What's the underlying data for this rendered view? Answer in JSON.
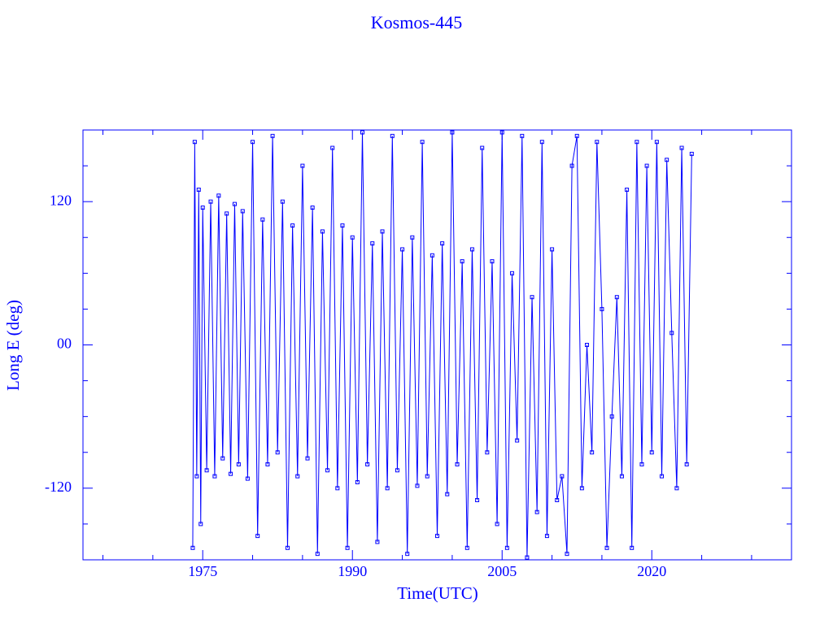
{
  "chart_data": {
    "type": "line",
    "title": "Kosmos-445",
    "x_label": "Time(UTC)",
    "y_label": "Long E (deg)",
    "color": "#0000ff",
    "markers": true,
    "xlim": [
      1963,
      2034
    ],
    "xticks": [
      1975,
      1990,
      2005,
      2020
    ],
    "xminorticks": [
      1965,
      1970,
      1980,
      1985,
      1995,
      2000,
      2010,
      2015,
      2025,
      2030
    ],
    "ylim": [
      -180,
      180
    ],
    "yticks": [
      -120,
      {
        "value": 0,
        "label": "00"
      },
      120
    ],
    "yminorticks": [
      -150,
      -90,
      -60,
      -30,
      30,
      60,
      90,
      150
    ],
    "x": [
      1974.0,
      1974.2,
      1974.4,
      1974.6,
      1974.8,
      1975.0,
      1975.4,
      1975.8,
      1976.2,
      1976.6,
      1977.0,
      1977.4,
      1977.8,
      1978.2,
      1978.6,
      1979.0,
      1979.5,
      1980.0,
      1980.5,
      1981.0,
      1981.5,
      1982.0,
      1982.5,
      1983.0,
      1983.5,
      1984.0,
      1984.5,
      1985.0,
      1985.5,
      1986.0,
      1986.5,
      1987.0,
      1987.5,
      1988.0,
      1988.5,
      1989.0,
      1989.5,
      1990.0,
      1990.5,
      1991.0,
      1991.5,
      1992.0,
      1992.5,
      1993.0,
      1993.5,
      1994.0,
      1994.5,
      1995.0,
      1995.5,
      1996.0,
      1996.5,
      1997.0,
      1997.5,
      1998.0,
      1998.5,
      1999.0,
      1999.5,
      2000.0,
      2000.5,
      2001.0,
      2001.5,
      2002.0,
      2002.5,
      2003.0,
      2003.5,
      2004.0,
      2004.5,
      2005.0,
      2005.5,
      2006.0,
      2006.5,
      2007.0,
      2007.5,
      2008.0,
      2008.5,
      2009.0,
      2009.5,
      2010.0,
      2010.5,
      2011.0,
      2011.5,
      2012.0,
      2012.5,
      2013.0,
      2013.5,
      2014.0,
      2014.5,
      2015.0,
      2015.5,
      2016.0,
      2016.5,
      2017.0,
      2017.5,
      2018.0,
      2018.5,
      2019.0,
      2019.5,
      2020.0,
      2020.5,
      2021.0,
      2021.5,
      2022.0,
      2022.5,
      2023.0,
      2023.5,
      2024.0
    ],
    "values": [
      -170,
      170,
      -110,
      130,
      -150,
      115,
      -105,
      120,
      -110,
      125,
      -95,
      110,
      -108,
      118,
      -100,
      112,
      -112,
      170,
      -160,
      105,
      -100,
      175,
      -90,
      120,
      -170,
      100,
      -110,
      150,
      -95,
      115,
      -175,
      95,
      -105,
      165,
      -120,
      100,
      -170,
      90,
      -115,
      178,
      -100,
      85,
      -165,
      95,
      -120,
      175,
      -105,
      80,
      -175,
      90,
      -118,
      170,
      -110,
      75,
      -160,
      85,
      -125,
      178,
      -100,
      70,
      -170,
      80,
      -130,
      165,
      -90,
      70,
      -150,
      178,
      -170,
      60,
      -80,
      175,
      -178,
      40,
      -140,
      170,
      -160,
      80,
      -130,
      -110,
      -175,
      150,
      175,
      -120,
      0,
      -90,
      170,
      30,
      -170,
      -60,
      40,
      -110,
      130,
      -170,
      170,
      -100,
      150,
      -90,
      170,
      -110,
      155,
      10,
      -120,
      165,
      -100,
      160
    ]
  }
}
